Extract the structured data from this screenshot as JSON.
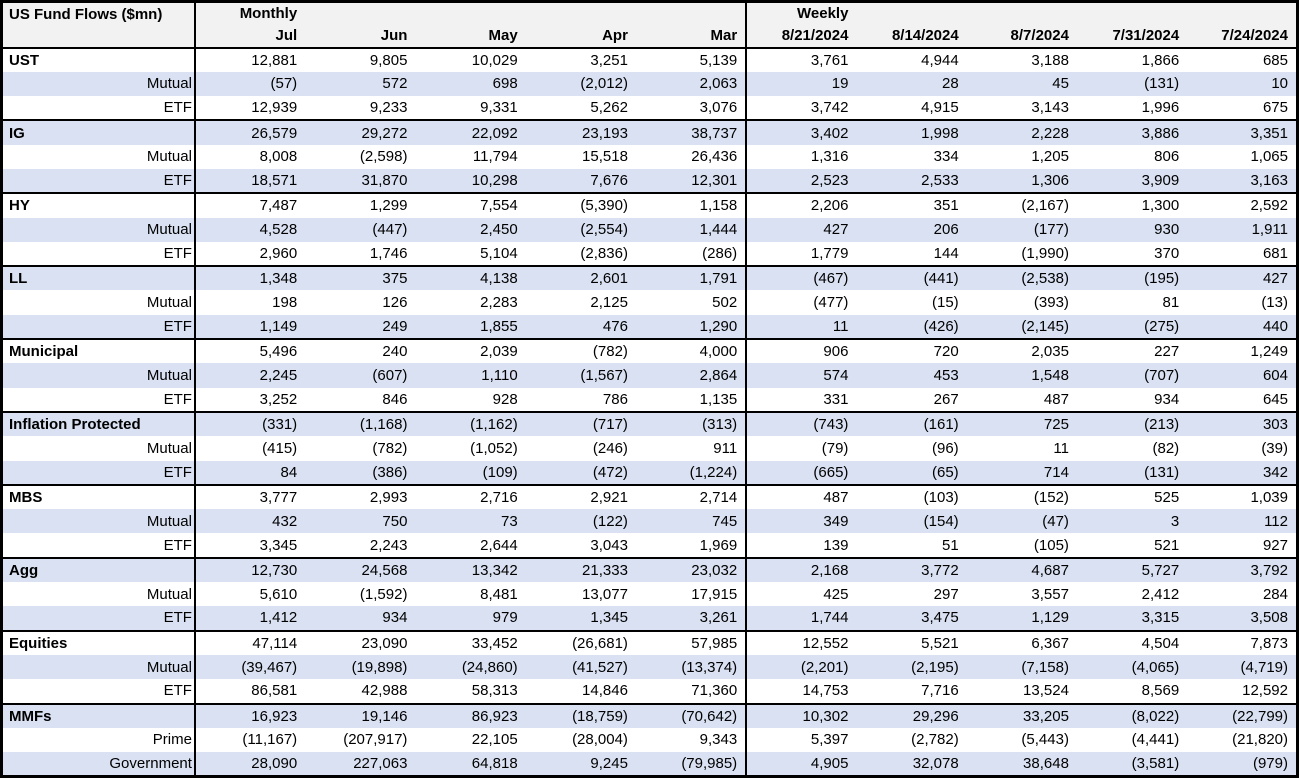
{
  "colors": {
    "band": "#d9e1f2",
    "header_bg": "#f2f2f2",
    "border": "#000000"
  },
  "chart_data": {
    "type": "table",
    "title": "US Fund Flows ($mn)",
    "sections": [
      {
        "label": "Monthly",
        "columns": [
          "Jul",
          "Jun",
          "May",
          "Apr",
          "Mar"
        ]
      },
      {
        "label": "Weekly",
        "columns": [
          "8/21/2024",
          "8/14/2024",
          "8/7/2024",
          "7/31/2024",
          "7/24/2024"
        ]
      }
    ],
    "groups": [
      {
        "name": "UST",
        "monthly": [
          "12,881",
          "9,805",
          "10,029",
          "3,251",
          "5,139"
        ],
        "weekly": [
          "3,761",
          "4,944",
          "3,188",
          "1,866",
          "685"
        ],
        "children": [
          {
            "label": "Mutual",
            "monthly": [
              "(57)",
              "572",
              "698",
              "(2,012)",
              "2,063"
            ],
            "weekly": [
              "19",
              "28",
              "45",
              "(131)",
              "10"
            ]
          },
          {
            "label": "ETF",
            "monthly": [
              "12,939",
              "9,233",
              "9,331",
              "5,262",
              "3,076"
            ],
            "weekly": [
              "3,742",
              "4,915",
              "3,143",
              "1,996",
              "675"
            ]
          }
        ]
      },
      {
        "name": "IG",
        "monthly": [
          "26,579",
          "29,272",
          "22,092",
          "23,193",
          "38,737"
        ],
        "weekly": [
          "3,402",
          "1,998",
          "2,228",
          "3,886",
          "3,351"
        ],
        "children": [
          {
            "label": "Mutual",
            "monthly": [
              "8,008",
              "(2,598)",
              "11,794",
              "15,518",
              "26,436"
            ],
            "weekly": [
              "1,316",
              "334",
              "1,205",
              "806",
              "1,065"
            ]
          },
          {
            "label": "ETF",
            "monthly": [
              "18,571",
              "31,870",
              "10,298",
              "7,676",
              "12,301"
            ],
            "weekly": [
              "2,523",
              "2,533",
              "1,306",
              "3,909",
              "3,163"
            ]
          }
        ]
      },
      {
        "name": "HY",
        "monthly": [
          "7,487",
          "1,299",
          "7,554",
          "(5,390)",
          "1,158"
        ],
        "weekly": [
          "2,206",
          "351",
          "(2,167)",
          "1,300",
          "2,592"
        ],
        "children": [
          {
            "label": "Mutual",
            "monthly": [
              "4,528",
              "(447)",
              "2,450",
              "(2,554)",
              "1,444"
            ],
            "weekly": [
              "427",
              "206",
              "(177)",
              "930",
              "1,911"
            ]
          },
          {
            "label": "ETF",
            "monthly": [
              "2,960",
              "1,746",
              "5,104",
              "(2,836)",
              "(286)"
            ],
            "weekly": [
              "1,779",
              "144",
              "(1,990)",
              "370",
              "681"
            ]
          }
        ]
      },
      {
        "name": "LL",
        "monthly": [
          "1,348",
          "375",
          "4,138",
          "2,601",
          "1,791"
        ],
        "weekly": [
          "(467)",
          "(441)",
          "(2,538)",
          "(195)",
          "427"
        ],
        "children": [
          {
            "label": "Mutual",
            "monthly": [
              "198",
              "126",
              "2,283",
              "2,125",
              "502"
            ],
            "weekly": [
              "(477)",
              "(15)",
              "(393)",
              "81",
              "(13)"
            ]
          },
          {
            "label": "ETF",
            "monthly": [
              "1,149",
              "249",
              "1,855",
              "476",
              "1,290"
            ],
            "weekly": [
              "11",
              "(426)",
              "(2,145)",
              "(275)",
              "440"
            ]
          }
        ]
      },
      {
        "name": "Municipal",
        "monthly": [
          "5,496",
          "240",
          "2,039",
          "(782)",
          "4,000"
        ],
        "weekly": [
          "906",
          "720",
          "2,035",
          "227",
          "1,249"
        ],
        "children": [
          {
            "label": "Mutual",
            "monthly": [
              "2,245",
              "(607)",
              "1,110",
              "(1,567)",
              "2,864"
            ],
            "weekly": [
              "574",
              "453",
              "1,548",
              "(707)",
              "604"
            ]
          },
          {
            "label": "ETF",
            "monthly": [
              "3,252",
              "846",
              "928",
              "786",
              "1,135"
            ],
            "weekly": [
              "331",
              "267",
              "487",
              "934",
              "645"
            ]
          }
        ]
      },
      {
        "name": "Inflation Protected",
        "monthly": [
          "(331)",
          "(1,168)",
          "(1,162)",
          "(717)",
          "(313)"
        ],
        "weekly": [
          "(743)",
          "(161)",
          "725",
          "(213)",
          "303"
        ],
        "children": [
          {
            "label": "Mutual",
            "monthly": [
              "(415)",
              "(782)",
              "(1,052)",
              "(246)",
              "911"
            ],
            "weekly": [
              "(79)",
              "(96)",
              "11",
              "(82)",
              "(39)"
            ]
          },
          {
            "label": "ETF",
            "monthly": [
              "84",
              "(386)",
              "(109)",
              "(472)",
              "(1,224)"
            ],
            "weekly": [
              "(665)",
              "(65)",
              "714",
              "(131)",
              "342"
            ]
          }
        ]
      },
      {
        "name": "MBS",
        "monthly": [
          "3,777",
          "2,993",
          "2,716",
          "2,921",
          "2,714"
        ],
        "weekly": [
          "487",
          "(103)",
          "(152)",
          "525",
          "1,039"
        ],
        "children": [
          {
            "label": "Mutual",
            "monthly": [
              "432",
              "750",
              "73",
              "(122)",
              "745"
            ],
            "weekly": [
              "349",
              "(154)",
              "(47)",
              "3",
              "112"
            ]
          },
          {
            "label": "ETF",
            "monthly": [
              "3,345",
              "2,243",
              "2,644",
              "3,043",
              "1,969"
            ],
            "weekly": [
              "139",
              "51",
              "(105)",
              "521",
              "927"
            ]
          }
        ]
      },
      {
        "name": "Agg",
        "monthly": [
          "12,730",
          "24,568",
          "13,342",
          "21,333",
          "23,032"
        ],
        "weekly": [
          "2,168",
          "3,772",
          "4,687",
          "5,727",
          "3,792"
        ],
        "children": [
          {
            "label": "Mutual",
            "monthly": [
              "5,610",
              "(1,592)",
              "8,481",
              "13,077",
              "17,915"
            ],
            "weekly": [
              "425",
              "297",
              "3,557",
              "2,412",
              "284"
            ]
          },
          {
            "label": "ETF",
            "monthly": [
              "1,412",
              "934",
              "979",
              "1,345",
              "3,261"
            ],
            "weekly": [
              "1,744",
              "3,475",
              "1,129",
              "3,315",
              "3,508"
            ]
          }
        ]
      },
      {
        "name": "Equities",
        "monthly": [
          "47,114",
          "23,090",
          "33,452",
          "(26,681)",
          "57,985"
        ],
        "weekly": [
          "12,552",
          "5,521",
          "6,367",
          "4,504",
          "7,873"
        ],
        "children": [
          {
            "label": "Mutual",
            "monthly": [
              "(39,467)",
              "(19,898)",
              "(24,860)",
              "(41,527)",
              "(13,374)"
            ],
            "weekly": [
              "(2,201)",
              "(2,195)",
              "(7,158)",
              "(4,065)",
              "(4,719)"
            ]
          },
          {
            "label": "ETF",
            "monthly": [
              "86,581",
              "42,988",
              "58,313",
              "14,846",
              "71,360"
            ],
            "weekly": [
              "14,753",
              "7,716",
              "13,524",
              "8,569",
              "12,592"
            ]
          }
        ]
      },
      {
        "name": "MMFs",
        "monthly": [
          "16,923",
          "19,146",
          "86,923",
          "(18,759)",
          "(70,642)"
        ],
        "weekly": [
          "10,302",
          "29,296",
          "33,205",
          "(8,022)",
          "(22,799)"
        ],
        "children": [
          {
            "label": "Prime",
            "monthly": [
              "(11,167)",
              "(207,917)",
              "22,105",
              "(28,004)",
              "9,343"
            ],
            "weekly": [
              "5,397",
              "(2,782)",
              "(5,443)",
              "(4,441)",
              "(21,820)"
            ]
          },
          {
            "label": "Government",
            "monthly": [
              "28,090",
              "227,063",
              "64,818",
              "9,245",
              "(79,985)"
            ],
            "weekly": [
              "4,905",
              "32,078",
              "38,648",
              "(3,581)",
              "(979)"
            ]
          }
        ]
      }
    ]
  }
}
